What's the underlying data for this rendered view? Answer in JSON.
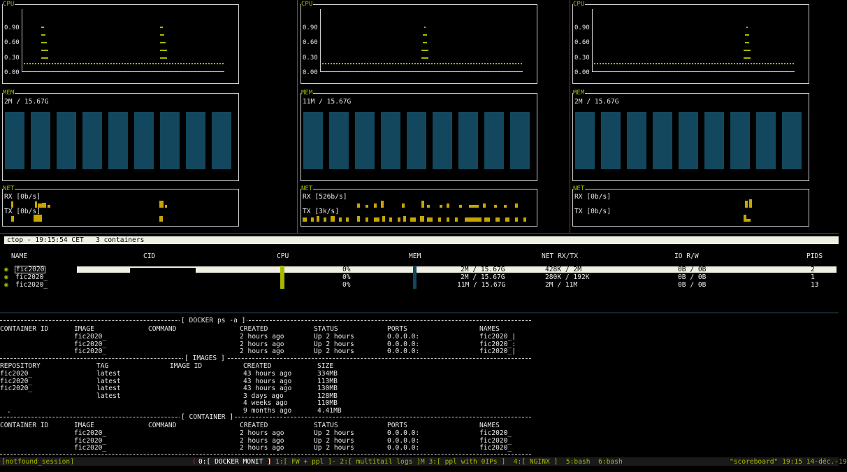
{
  "monitors": [
    {
      "cpu_title": "CPU",
      "y_labels": [
        "0.90",
        "0.60",
        "0.30",
        "0.00"
      ],
      "mem_title": "MEM",
      "mem_text": "2M / 15.67G",
      "net_title": "NET",
      "rx_text": "RX [0b/s]",
      "tx_text": "TX [0b/s]"
    },
    {
      "cpu_title": "CPU",
      "y_labels": [
        "0.90",
        "0.60",
        "0.30",
        "0.00"
      ],
      "mem_title": "MEM",
      "mem_text": "11M / 15.67G",
      "net_title": "NET",
      "rx_text": "RX [526b/s]",
      "tx_text": "TX [3k/s]"
    },
    {
      "cpu_title": "CPU",
      "y_labels": [
        "0.90",
        "0.60",
        "0.30",
        "0.00"
      ],
      "mem_title": "MEM",
      "mem_text": "2M / 15.67G",
      "net_title": "NET",
      "rx_text": "RX [0b/s]",
      "tx_text": "TX [0b/s]"
    }
  ],
  "ctop": {
    "status": "ctop - 19:15:54 CET   3 containers",
    "headers": [
      "NAME",
      "CID",
      "CPU",
      "MEM",
      "NET RX/TX",
      "IO R/W",
      "PIDS"
    ],
    "rows": [
      {
        "bullet": "◉",
        "name": "fic2020",
        "cpu": "0%",
        "mem": "2M / 15.67G",
        "net": "428K / 2M",
        "io": "0B / 0B",
        "pids": "2"
      },
      {
        "bullet": "◉",
        "name": "fic2020_",
        "cpu": "0%",
        "mem": "2M / 15.67G",
        "net": "280K / 192K",
        "io": "0B / 0B",
        "pids": "1"
      },
      {
        "bullet": "◉",
        "name": "fic2020_",
        "cpu": "0%",
        "mem": "11M / 15.67G",
        "net": "2M / 11M",
        "io": "0B / 0B",
        "pids": "13"
      }
    ]
  },
  "docker_ps": {
    "title": "[ DOCKER ps -a ]",
    "headers": [
      "CONTAINER ID",
      "IMAGE",
      "COMMAND",
      "CREATED",
      "STATUS",
      "PORTS",
      "NAMES"
    ],
    "rows": [
      [
        "",
        "fic2020_",
        "",
        "2 hours ago",
        "Up 2 hours",
        "0.0.0.0:",
        "fic2020_|"
      ],
      [
        "",
        "fic2020_",
        "",
        "2 hours ago",
        "Up 2 hours",
        "0.0.0.0:",
        "fic2020_:"
      ],
      [
        "",
        "fic2020_",
        "",
        "2 hours ago",
        "Up 2 hours",
        "0.0.0.0:",
        "fic2020_|"
      ]
    ]
  },
  "images": {
    "title": "[ IMAGES ]",
    "headers": [
      "REPOSITORY",
      "TAG",
      "IMAGE ID",
      "CREATED",
      "SIZE"
    ],
    "rows": [
      [
        "fic2020_",
        "latest",
        "",
        "43 hours ago",
        "334MB"
      ],
      [
        "fic2020_",
        "latest",
        "",
        "43 hours ago",
        "113MB"
      ],
      [
        "fic2020_",
        "latest",
        "",
        "43 hours ago",
        "130MB"
      ],
      [
        "",
        "latest",
        "",
        "3 days ago",
        "128MB"
      ],
      [
        "",
        "",
        "",
        "4 weeks ago",
        "110MB"
      ],
      [
        ".",
        "",
        "",
        "9 months ago",
        "4.41MB"
      ]
    ]
  },
  "container": {
    "title": "[ CONTAINER ]",
    "headers": [
      "CONTAINER ID",
      "IMAGE",
      "COMMAND",
      "CREATED",
      "STATUS",
      "PORTS",
      "NAMES"
    ],
    "rows": [
      [
        "",
        "fic2020_",
        "",
        "2 hours ago",
        "Up 2 hours",
        "0.0.0.0:",
        "fic2020_"
      ],
      [
        "",
        "fic2020_",
        "",
        "2 hours ago",
        "Up 2 hours",
        "0.0.0.0:",
        "fic2020_"
      ],
      [
        "",
        "fic2020_",
        "",
        "2 hours ago",
        "Up 2 hours",
        "0.0.0.0:",
        "fic2020_"
      ]
    ]
  },
  "tmux": {
    "session": "[notfound_session]",
    "window_0": "0:[ DOCKER MONIT ]",
    "windows_rest": "1:[ FW + ppl ]- 2:[ multitail logs ]M 3:[ ppl with 0IPs ]  4:[ NGINX ]  5:bash  6:bash",
    "right": "\"scoreboard\" 19:15 14-déc.-19"
  },
  "colors": {
    "accent": "#a6b800",
    "mem_bar": "#13475e",
    "highlight": "#f0efe3",
    "net_bar": "#c8a500"
  }
}
